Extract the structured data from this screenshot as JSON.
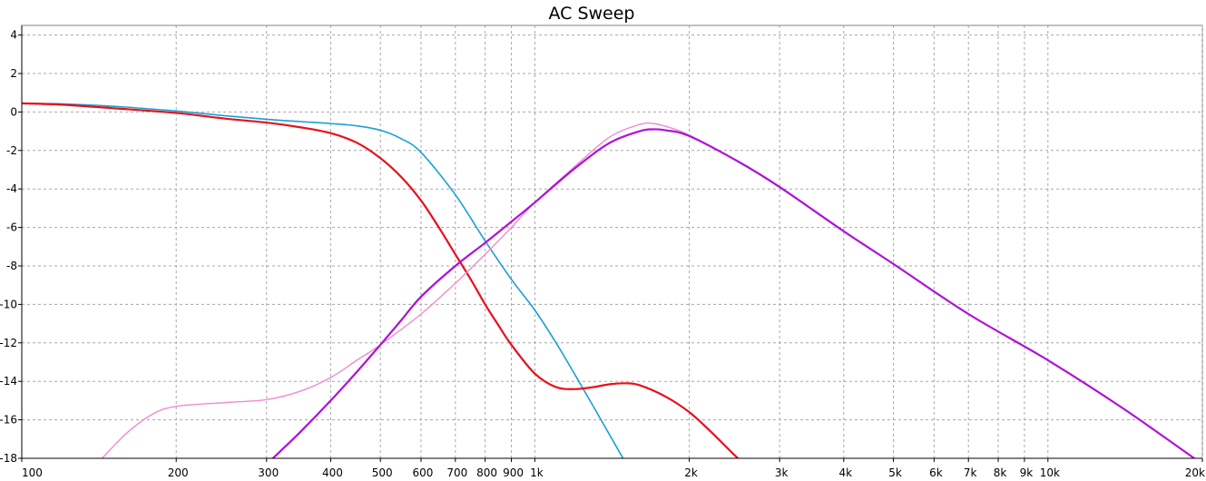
{
  "chart_data": {
    "type": "line",
    "title": "AC Sweep",
    "xlabel": "",
    "ylabel": "",
    "x_scale": "log",
    "xlim": [
      100,
      20000
    ],
    "ylim": [
      -18,
      4.5
    ],
    "grid": true,
    "y_ticks": [
      4,
      2,
      0,
      -2,
      -4,
      -6,
      -8,
      -10,
      -12,
      -14,
      -16,
      -18
    ],
    "x_ticks": [
      {
        "value": 100,
        "label": "100"
      },
      {
        "value": 200,
        "label": "200"
      },
      {
        "value": 300,
        "label": "300"
      },
      {
        "value": 400,
        "label": "400"
      },
      {
        "value": 500,
        "label": "500"
      },
      {
        "value": 600,
        "label": "600"
      },
      {
        "value": 700,
        "label": "700"
      },
      {
        "value": 800,
        "label": "800"
      },
      {
        "value": 900,
        "label": "900"
      },
      {
        "value": 1000,
        "label": "1k"
      },
      {
        "value": 2000,
        "label": "2k"
      },
      {
        "value": 3000,
        "label": "3k"
      },
      {
        "value": 4000,
        "label": "4k"
      },
      {
        "value": 5000,
        "label": "5k"
      },
      {
        "value": 6000,
        "label": "6k"
      },
      {
        "value": 7000,
        "label": "7k"
      },
      {
        "value": 8000,
        "label": "8k"
      },
      {
        "value": 9000,
        "label": "9k"
      },
      {
        "value": 10000,
        "label": "10k"
      },
      {
        "value": 20000,
        "label": "20k"
      }
    ],
    "series": [
      {
        "color": "#1a9fd6",
        "width": 1.6,
        "points": [
          [
            100,
            0.45
          ],
          [
            120,
            0.42
          ],
          [
            150,
            0.3
          ],
          [
            200,
            0.05
          ],
          [
            250,
            -0.2
          ],
          [
            300,
            -0.38
          ],
          [
            350,
            -0.5
          ],
          [
            400,
            -0.6
          ],
          [
            450,
            -0.72
          ],
          [
            500,
            -0.95
          ],
          [
            550,
            -1.4
          ],
          [
            600,
            -2.1
          ],
          [
            700,
            -4.3
          ],
          [
            800,
            -6.7
          ],
          [
            900,
            -8.7
          ],
          [
            1000,
            -10.3
          ],
          [
            1100,
            -12.0
          ],
          [
            1200,
            -13.7
          ],
          [
            1300,
            -15.3
          ],
          [
            1400,
            -16.8
          ],
          [
            1500,
            -18.2
          ]
        ]
      },
      {
        "color": "#e8101a",
        "width": 2.2,
        "points": [
          [
            100,
            0.45
          ],
          [
            120,
            0.38
          ],
          [
            150,
            0.2
          ],
          [
            200,
            -0.05
          ],
          [
            250,
            -0.35
          ],
          [
            300,
            -0.55
          ],
          [
            350,
            -0.8
          ],
          [
            400,
            -1.1
          ],
          [
            450,
            -1.6
          ],
          [
            500,
            -2.4
          ],
          [
            550,
            -3.4
          ],
          [
            600,
            -4.6
          ],
          [
            650,
            -6.0
          ],
          [
            700,
            -7.4
          ],
          [
            750,
            -8.7
          ],
          [
            800,
            -10.0
          ],
          [
            850,
            -11.1
          ],
          [
            900,
            -12.1
          ],
          [
            1000,
            -13.6
          ],
          [
            1100,
            -14.3
          ],
          [
            1200,
            -14.4
          ],
          [
            1300,
            -14.3
          ],
          [
            1400,
            -14.15
          ],
          [
            1500,
            -14.1
          ],
          [
            1600,
            -14.2
          ],
          [
            1800,
            -14.8
          ],
          [
            2000,
            -15.6
          ],
          [
            2200,
            -16.6
          ],
          [
            2400,
            -17.6
          ],
          [
            2600,
            -18.5
          ]
        ]
      },
      {
        "color": "#f08ad0",
        "width": 1.4,
        "points": [
          [
            140,
            -18.3
          ],
          [
            160,
            -16.7
          ],
          [
            180,
            -15.7
          ],
          [
            200,
            -15.3
          ],
          [
            250,
            -15.1
          ],
          [
            300,
            -14.95
          ],
          [
            350,
            -14.5
          ],
          [
            400,
            -13.8
          ],
          [
            450,
            -12.9
          ],
          [
            500,
            -12.1
          ],
          [
            600,
            -10.5
          ],
          [
            700,
            -8.9
          ],
          [
            800,
            -7.4
          ],
          [
            900,
            -6.0
          ],
          [
            1000,
            -4.7
          ],
          [
            1200,
            -2.8
          ],
          [
            1400,
            -1.3
          ],
          [
            1600,
            -0.65
          ],
          [
            1700,
            -0.6
          ],
          [
            1800,
            -0.75
          ],
          [
            2000,
            -1.2
          ],
          [
            2500,
            -2.6
          ],
          [
            3000,
            -3.9
          ],
          [
            4000,
            -6.2
          ],
          [
            5000,
            -7.9
          ],
          [
            7000,
            -10.5
          ],
          [
            10000,
            -12.9
          ],
          [
            14000,
            -15.4
          ],
          [
            20000,
            -18.3
          ]
        ]
      },
      {
        "color": "#b010d8",
        "width": 2.2,
        "points": [
          [
            300,
            -18.3
          ],
          [
            320,
            -17.6
          ],
          [
            350,
            -16.6
          ],
          [
            400,
            -15.0
          ],
          [
            450,
            -13.5
          ],
          [
            500,
            -12.1
          ],
          [
            550,
            -10.8
          ],
          [
            600,
            -9.6
          ],
          [
            700,
            -8.0
          ],
          [
            800,
            -6.8
          ],
          [
            900,
            -5.7
          ],
          [
            1000,
            -4.7
          ],
          [
            1200,
            -2.9
          ],
          [
            1400,
            -1.6
          ],
          [
            1600,
            -1.0
          ],
          [
            1700,
            -0.9
          ],
          [
            1800,
            -0.95
          ],
          [
            2000,
            -1.25
          ],
          [
            2500,
            -2.6
          ],
          [
            3000,
            -3.9
          ],
          [
            4000,
            -6.2
          ],
          [
            5000,
            -7.9
          ],
          [
            7000,
            -10.5
          ],
          [
            10000,
            -12.9
          ],
          [
            14000,
            -15.4
          ],
          [
            20000,
            -18.3
          ]
        ]
      }
    ]
  }
}
